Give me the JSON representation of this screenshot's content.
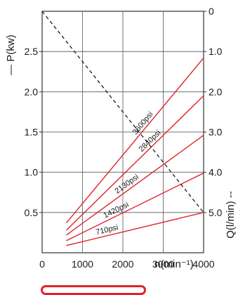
{
  "chart_data": {
    "type": "line",
    "title": "",
    "xlabel": "n(min⁻¹)",
    "ylabel_left": "— P(kw)",
    "ylabel_right": "Q(l/min) --",
    "xlim": [
      0,
      4000
    ],
    "ylim_left": [
      0,
      3.0
    ],
    "ylim_right": [
      0,
      6.0
    ],
    "right_axis_inverted": true,
    "grid": true,
    "x_ticks": [
      "0",
      "1000",
      "2000",
      "3000",
      "4000"
    ],
    "y_left_ticks": [
      "2.5",
      "2.0",
      "1.5",
      "1.0",
      "0.5"
    ],
    "y_right_ticks": [
      "0",
      "1.0",
      "2.0",
      "3.0",
      "4.0",
      "5.0"
    ],
    "series": [
      {
        "name": "3600psi",
        "axis": "left",
        "color": "#e0232b",
        "x": [
          600,
          4000
        ],
        "y": [
          0.37,
          2.42
        ]
      },
      {
        "name": "2840psi",
        "axis": "left",
        "color": "#e0232b",
        "x": [
          600,
          4000
        ],
        "y": [
          0.28,
          1.95
        ]
      },
      {
        "name": "2130psi",
        "axis": "left",
        "color": "#e0232b",
        "x": [
          600,
          4000
        ],
        "y": [
          0.22,
          1.46
        ]
      },
      {
        "name": "1420psi",
        "axis": "left",
        "color": "#e0232b",
        "x": [
          600,
          4000
        ],
        "y": [
          0.15,
          0.99
        ]
      },
      {
        "name": "710psi",
        "axis": "left",
        "color": "#e0232b",
        "x": [
          600,
          4000
        ],
        "y": [
          0.09,
          0.5
        ]
      },
      {
        "name": "Q",
        "axis": "right",
        "dashed": true,
        "color": "#1a1a1a",
        "x": [
          0,
          4000
        ],
        "y": [
          0,
          5.0
        ]
      }
    ]
  }
}
